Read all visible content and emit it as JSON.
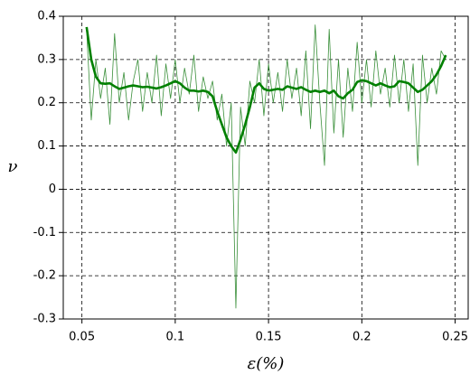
{
  "chart_data": {
    "type": "line",
    "xlabel": "ε(%)",
    "ylabel": "ν",
    "x": [
      0.0525,
      0.055,
      0.0575,
      0.06,
      0.0625,
      0.065,
      0.0675,
      0.07,
      0.0725,
      0.075,
      0.0775,
      0.08,
      0.0825,
      0.085,
      0.0875,
      0.09,
      0.0925,
      0.095,
      0.0975,
      0.1,
      0.1025,
      0.105,
      0.1075,
      0.11,
      0.1125,
      0.115,
      0.1175,
      0.12,
      0.1225,
      0.125,
      0.1275,
      0.13,
      0.1325,
      0.135,
      0.1375,
      0.14,
      0.1425,
      0.145,
      0.1475,
      0.15,
      0.1525,
      0.155,
      0.1575,
      0.16,
      0.1625,
      0.165,
      0.1675,
      0.17,
      0.1725,
      0.175,
      0.1775,
      0.18,
      0.1825,
      0.185,
      0.1875,
      0.19,
      0.1925,
      0.195,
      0.1975,
      0.2,
      0.2025,
      0.205,
      0.2075,
      0.21,
      0.2125,
      0.215,
      0.2175,
      0.22,
      0.2225,
      0.225,
      0.2275,
      0.23,
      0.2325,
      0.235,
      0.2375,
      0.24,
      0.2425,
      0.245
    ],
    "series": [
      {
        "color": "#3a8f3a",
        "values": [
          0.37,
          0.16,
          0.3,
          0.21,
          0.28,
          0.15,
          0.36,
          0.2,
          0.27,
          0.16,
          0.25,
          0.3,
          0.18,
          0.27,
          0.2,
          0.31,
          0.17,
          0.29,
          0.21,
          0.3,
          0.2,
          0.28,
          0.22,
          0.31,
          0.18,
          0.26,
          0.21,
          0.25,
          0.16,
          0.22,
          0.1,
          0.2,
          -0.275,
          0.19,
          0.1,
          0.25,
          0.2,
          0.3,
          0.17,
          0.29,
          0.2,
          0.27,
          0.18,
          0.3,
          0.21,
          0.28,
          0.17,
          0.32,
          0.14,
          0.38,
          0.2,
          0.055,
          0.37,
          0.13,
          0.3,
          0.12,
          0.28,
          0.18,
          0.34,
          0.2,
          0.3,
          0.19,
          0.32,
          0.22,
          0.28,
          0.19,
          0.31,
          0.2,
          0.3,
          0.18,
          0.29,
          0.055,
          0.31,
          0.2,
          0.28,
          0.22,
          0.32,
          0.3
        ]
      },
      {
        "color": "#008000",
        "values": [
          0.375,
          0.3,
          0.26,
          0.245,
          0.244,
          0.245,
          0.238,
          0.232,
          0.235,
          0.238,
          0.24,
          0.238,
          0.236,
          0.237,
          0.235,
          0.233,
          0.236,
          0.24,
          0.245,
          0.25,
          0.245,
          0.235,
          0.228,
          0.228,
          0.226,
          0.228,
          0.225,
          0.215,
          0.18,
          0.15,
          0.12,
          0.1,
          0.085,
          0.115,
          0.15,
          0.19,
          0.235,
          0.245,
          0.232,
          0.228,
          0.23,
          0.232,
          0.23,
          0.238,
          0.235,
          0.232,
          0.236,
          0.23,
          0.225,
          0.228,
          0.225,
          0.228,
          0.222,
          0.228,
          0.215,
          0.21,
          0.222,
          0.23,
          0.248,
          0.252,
          0.25,
          0.245,
          0.24,
          0.245,
          0.24,
          0.236,
          0.238,
          0.25,
          0.248,
          0.245,
          0.235,
          0.225,
          0.23,
          0.24,
          0.25,
          0.265,
          0.285,
          0.31
        ]
      }
    ],
    "xlim": [
      0.04,
      0.257
    ],
    "ylim": [
      -0.3,
      0.4
    ],
    "xticks": [
      0.05,
      0.1,
      0.15,
      0.2,
      0.25
    ],
    "yticks": [
      -0.3,
      -0.2,
      -0.1,
      0,
      0.1,
      0.2,
      0.3,
      0.4
    ],
    "grid": true
  }
}
